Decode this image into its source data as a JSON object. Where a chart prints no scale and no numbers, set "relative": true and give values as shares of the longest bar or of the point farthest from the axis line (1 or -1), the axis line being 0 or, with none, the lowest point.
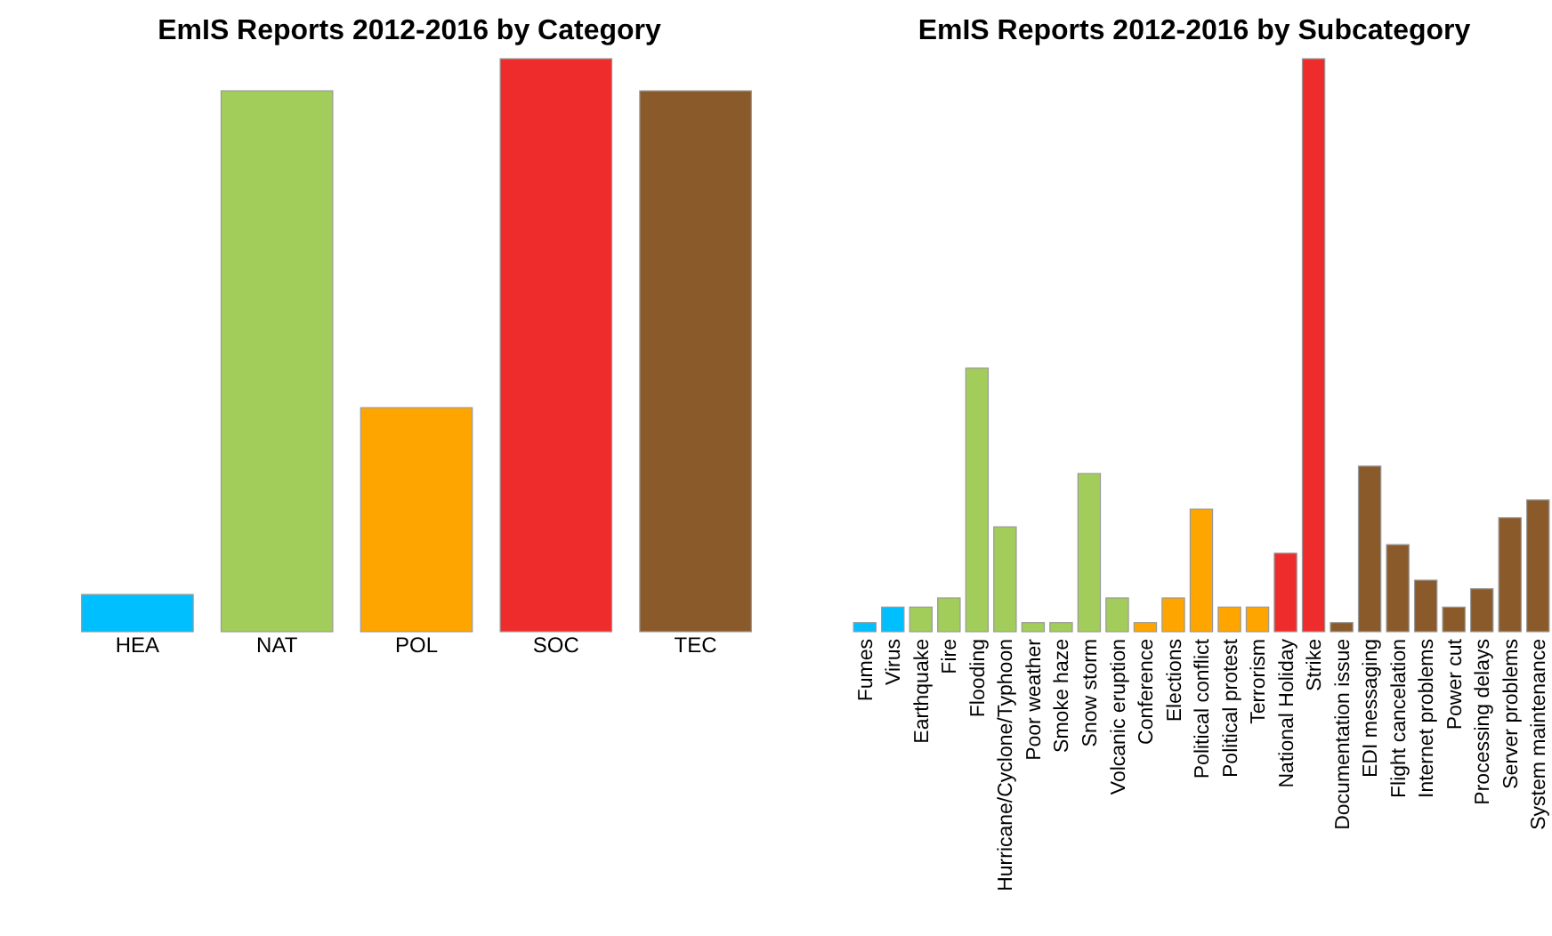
{
  "chart_data": [
    {
      "type": "bar",
      "title": "EmIS Reports 2012-2016 by Category",
      "relative": true,
      "categories": [
        "HEA",
        "NAT",
        "POL",
        "SOC",
        "TEC"
      ],
      "values": [
        0.065,
        0.944,
        0.391,
        1,
        0.944
      ],
      "colors": [
        "#00bfff",
        "#a2cd5a",
        "#ffa500",
        "#ee2c2c",
        "#8b5a2b"
      ]
    },
    {
      "type": "bar",
      "title": "EmIS Reports 2012-2016 by Subcategory",
      "relative": true,
      "categories": [
        "Fumes",
        "Virus",
        "Earthquake",
        "Fire",
        "Flooding",
        "Hurricane/Cyclone/Typhoon",
        "Poor weather",
        "Smoke haze",
        "Snow storm",
        "Volcanic eruption",
        "Conference",
        "Elections",
        "Political conflict",
        "Political protest",
        "Terrorism",
        "National Holiday",
        "Strike",
        "Documentation issue",
        "EDI messaging",
        "Flight cancelation",
        "Internet problems",
        "Power cut",
        "Processing delays",
        "Server problems",
        "System maintenance"
      ],
      "values": [
        0.016,
        0.043,
        0.043,
        0.059,
        0.46,
        0.183,
        0.016,
        0.016,
        0.276,
        0.059,
        0.016,
        0.059,
        0.214,
        0.043,
        0.043,
        0.137,
        1,
        0.016,
        0.289,
        0.152,
        0.09,
        0.043,
        0.075,
        0.199,
        0.23
      ],
      "colors": [
        "#00bfff",
        "#00bfff",
        "#a2cd5a",
        "#a2cd5a",
        "#a2cd5a",
        "#a2cd5a",
        "#a2cd5a",
        "#a2cd5a",
        "#a2cd5a",
        "#a2cd5a",
        "#ffa500",
        "#ffa500",
        "#ffa500",
        "#ffa500",
        "#ffa500",
        "#ee2c2c",
        "#ee2c2c",
        "#8b5a2b",
        "#8b5a2b",
        "#8b5a2b",
        "#8b5a2b",
        "#8b5a2b",
        "#8b5a2b",
        "#8b5a2b",
        "#8b5a2b"
      ]
    }
  ]
}
